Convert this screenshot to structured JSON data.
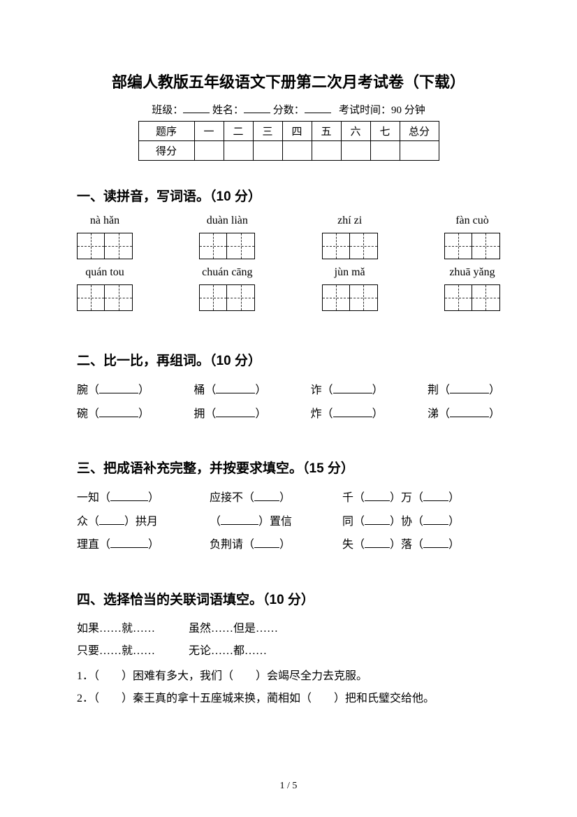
{
  "title": "部编人教版五年级语文下册第二次月考试卷（下载）",
  "meta": {
    "class_label": "班级：",
    "name_label": "姓名：",
    "score_label": "分数：",
    "time_label": "考试时间：90 分钟"
  },
  "score_table": {
    "row1_label": "题序",
    "cols": [
      "一",
      "二",
      "三",
      "四",
      "五",
      "六",
      "七"
    ],
    "total": "总分",
    "row2_label": "得分"
  },
  "s1": {
    "heading": "一、读拼音，写词语。（10 分）",
    "row1": [
      "nà  hǎn",
      "duàn liàn",
      "zhí zi",
      "fàn cuò"
    ],
    "row2": [
      "quán tou",
      "chuán cāng",
      "jùn mǎ",
      "zhuā yǎng"
    ]
  },
  "s2": {
    "heading": "二、比一比，再组词。（10 分）",
    "rows": [
      [
        "腕",
        "桶",
        "诈",
        "荆"
      ],
      [
        "碗",
        "拥",
        "炸",
        "涕"
      ]
    ]
  },
  "s3": {
    "heading": "三、把成语补充完整，并按要求填空。（15 分）",
    "rows": [
      {
        "a": "一知（",
        "a2": "）",
        "b": "应接不（",
        "b2": "）",
        "c1": "千（",
        "c2": "）万（",
        "c3": "）"
      },
      {
        "a": "众（",
        "a2": "）拱月",
        "b": "（",
        "b2": "）置信",
        "c1": "同（",
        "c2": "）协（",
        "c3": "）"
      },
      {
        "a": "理直（",
        "a2": "）",
        "b": "负荆请（",
        "b2": "）",
        "c1": "失（",
        "c2": "）落（",
        "c3": "）"
      }
    ]
  },
  "s4": {
    "heading": "四、选择恰当的关联词语填空。（10 分）",
    "options": [
      [
        "如果……就……",
        "虽然……但是……"
      ],
      [
        "只要……就……",
        "无论……都……"
      ]
    ],
    "items": [
      "1．（　　）困难有多大，我们（　　）会竭尽全力去克服。",
      "2．（　　）秦王真的拿十五座城来换，蔺相如（　　）把和氏璧交给他。"
    ]
  },
  "page": "1 / 5"
}
